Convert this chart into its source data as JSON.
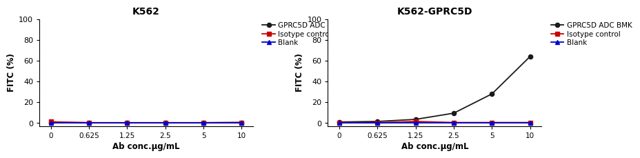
{
  "panel1": {
    "title": "K562",
    "x_positions": [
      0,
      1,
      2,
      3,
      4,
      5
    ],
    "series": {
      "GPRC5D ADC BMK": {
        "y": [
          0.5,
          0.3,
          0.3,
          0.3,
          0.3,
          0.5
        ],
        "color": "#1a1a1a",
        "marker": "o",
        "linestyle": "-"
      },
      "Isotype control": {
        "y": [
          1.2,
          0.3,
          0.3,
          0.3,
          0.3,
          0.5
        ],
        "color": "#cc0000",
        "marker": "s",
        "linestyle": "-"
      },
      "Blank": {
        "y": [
          0,
          0,
          0,
          0,
          0,
          0
        ],
        "color": "#0000cc",
        "marker": "^",
        "linestyle": "-"
      }
    },
    "ylim": [
      -3,
      100
    ],
    "yticks": [
      0,
      20,
      40,
      60,
      80,
      100
    ],
    "ylabel": "FITC (%)",
    "xlabel": "Ab conc.μg/mL",
    "xtick_labels": [
      "0",
      "0.625",
      "1.25",
      "2.5",
      "5",
      "10"
    ]
  },
  "panel2": {
    "title": "K562-GPRC5D",
    "x_positions": [
      0,
      1,
      2,
      3,
      4,
      5
    ],
    "series": {
      "GPRC5D ADC BMK": {
        "y": [
          1.0,
          1.5,
          3.5,
          9.5,
          28,
          64
        ],
        "color": "#1a1a1a",
        "marker": "o",
        "linestyle": "-"
      },
      "Isotype control": {
        "y": [
          0.5,
          0.3,
          1.5,
          0.5,
          0.5,
          0.5
        ],
        "color": "#cc0000",
        "marker": "s",
        "linestyle": "-"
      },
      "Blank": {
        "y": [
          0,
          0,
          0,
          0,
          0,
          0
        ],
        "color": "#0000cc",
        "marker": "^",
        "linestyle": "-"
      }
    },
    "ylim": [
      -3,
      100
    ],
    "yticks": [
      0,
      20,
      40,
      60,
      80,
      100
    ],
    "ylabel": "FITC (%)",
    "xlabel": "Ab conc.μg/mL",
    "xtick_labels": [
      "0",
      "0.625",
      "1.25",
      "2.5",
      "5",
      "10"
    ]
  },
  "legend_labels": [
    "GPRC5D ADC BMK",
    "Isotype control",
    "Blank"
  ],
  "legend_colors": [
    "#1a1a1a",
    "#cc0000",
    "#0000cc"
  ],
  "legend_markers": [
    "o",
    "s",
    "^"
  ],
  "figure_width": 8.0,
  "figure_height": 2.35,
  "background_color": "#ffffff"
}
